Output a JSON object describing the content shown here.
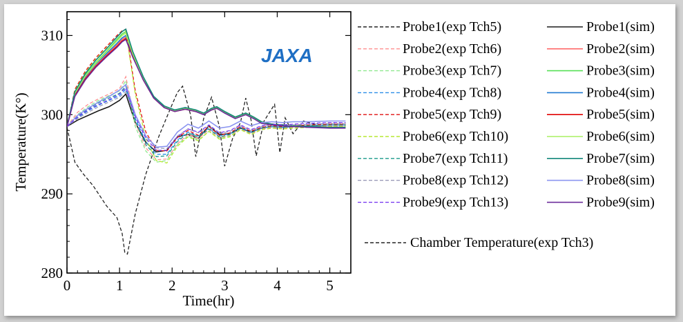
{
  "logo": {
    "text": "JAXA",
    "color": "#1f6fc4"
  },
  "chart_data": {
    "type": "line",
    "title": "",
    "xlabel": "Time(hr)",
    "ylabel": "Temperature(K°)",
    "xlim": [
      0,
      5.4
    ],
    "ylim": [
      280,
      313
    ],
    "xticks": [
      0,
      1,
      2,
      3,
      4,
      5
    ],
    "yticks": [
      280,
      290,
      300,
      310
    ],
    "grid": false,
    "legend_position": "right",
    "series": [
      {
        "name": "Probe1(exp Tch5)",
        "style": "dashed",
        "color": "#222222",
        "x": [
          0,
          0.15,
          0.3,
          0.5,
          0.75,
          0.95,
          1.05,
          1.1,
          1.15,
          1.3,
          1.5,
          1.75,
          1.95,
          2.1,
          2.2,
          2.35,
          2.45,
          2.6,
          2.75,
          2.9,
          3.0,
          3.15,
          3.3,
          3.4,
          3.5,
          3.6,
          3.75,
          3.95,
          4.05,
          4.15,
          4.3,
          4.5,
          4.75,
          5.0,
          5.3
        ],
        "values": [
          298.4,
          294.0,
          292.6,
          291.0,
          288.5,
          287.0,
          285.0,
          282.6,
          282.4,
          287.5,
          292.5,
          297.3,
          300.5,
          302.8,
          303.6,
          300.0,
          294.7,
          299.5,
          302.2,
          298.5,
          293.5,
          297.0,
          299.0,
          302.1,
          299.4,
          294.8,
          299.2,
          301.3,
          295.2,
          299.6,
          297.6,
          299.2,
          298.7,
          298.5,
          298.6
        ]
      },
      {
        "name": "Probe1(sim)",
        "style": "solid",
        "color": "#1a1a1a",
        "x": [
          0,
          0.2,
          0.4,
          0.6,
          0.8,
          1.0,
          1.12,
          1.3,
          1.5,
          1.7,
          1.9,
          2.1,
          2.3,
          2.5,
          2.7,
          2.9,
          3.1,
          3.3,
          3.5,
          3.7,
          3.9,
          4.1,
          4.3,
          4.6,
          5.0,
          5.3
        ],
        "values": [
          298.5,
          299.3,
          299.9,
          300.5,
          301.0,
          301.8,
          302.6,
          299.0,
          296.5,
          295.3,
          295.5,
          297.2,
          297.5,
          297.0,
          298.6,
          297.5,
          297.6,
          298.3,
          297.8,
          298.3,
          298.5,
          298.4,
          298.5,
          298.6,
          298.7,
          298.7
        ]
      },
      {
        "name": "Probe2(exp Tch6)",
        "style": "dashed",
        "color": "#ff8f8f",
        "x": [
          0,
          0.2,
          0.4,
          0.6,
          0.8,
          1.0,
          1.12,
          1.3,
          1.5,
          1.7,
          1.9,
          2.1,
          2.3,
          2.5,
          2.7,
          2.9,
          3.1,
          3.3,
          3.5,
          3.7,
          3.9,
          4.1,
          4.3,
          4.6,
          5.0,
          5.3
        ],
        "values": [
          298.5,
          300.3,
          301.3,
          302.0,
          302.6,
          303.3,
          304.8,
          299.0,
          295.8,
          294.3,
          294.4,
          296.3,
          297.5,
          297.0,
          298.1,
          297.1,
          297.4,
          298.2,
          297.6,
          298.2,
          298.4,
          298.3,
          298.4,
          298.5,
          298.6,
          298.6
        ]
      },
      {
        "name": "Probe2(sim)",
        "style": "solid",
        "color": "#ff6b6b",
        "x": [
          0,
          0.15,
          0.35,
          0.55,
          0.75,
          0.95,
          1.05,
          1.12,
          1.25,
          1.45,
          1.65,
          1.85,
          2.05,
          2.25,
          2.45,
          2.6,
          2.75,
          2.85,
          3.0,
          3.2,
          3.4,
          3.55,
          3.7,
          3.9,
          4.1,
          4.3,
          4.6,
          5.0,
          5.3
        ],
        "values": [
          298.5,
          302.5,
          304.6,
          306.2,
          307.5,
          308.8,
          309.5,
          309.8,
          307.5,
          304.5,
          302.2,
          301.0,
          300.4,
          300.7,
          300.4,
          300.1,
          300.6,
          300.8,
          300.3,
          299.6,
          300.1,
          299.6,
          299.0,
          298.8,
          298.7,
          298.6,
          298.5,
          298.4,
          298.4
        ]
      },
      {
        "name": "Probe3(exp Tch7)",
        "style": "dashed",
        "color": "#8fe88f",
        "x": [
          0,
          0.2,
          0.4,
          0.6,
          0.8,
          1.0,
          1.12,
          1.3,
          1.5,
          1.7,
          1.9,
          2.1,
          2.3,
          2.5,
          2.7,
          2.9,
          3.1,
          3.3,
          3.5,
          3.7,
          3.9,
          4.1,
          4.3,
          4.6,
          5.0,
          5.3
        ],
        "values": [
          298.5,
          300.0,
          301.0,
          301.8,
          302.4,
          303.0,
          304.3,
          298.5,
          295.4,
          294.0,
          294.2,
          296.2,
          297.3,
          296.8,
          297.9,
          297.0,
          297.3,
          298.1,
          297.5,
          298.1,
          298.3,
          298.2,
          298.3,
          298.4,
          298.5,
          298.5
        ]
      },
      {
        "name": "Probe3(sim)",
        "style": "solid",
        "color": "#55e055",
        "x": [
          0,
          0.15,
          0.35,
          0.55,
          0.75,
          0.95,
          1.05,
          1.12,
          1.25,
          1.45,
          1.65,
          1.85,
          2.05,
          2.25,
          2.45,
          2.6,
          2.75,
          2.85,
          3.0,
          3.2,
          3.4,
          3.55,
          3.7,
          3.9,
          4.1,
          4.3,
          4.6,
          5.0,
          5.3
        ],
        "values": [
          298.5,
          302.8,
          305.0,
          306.6,
          308.0,
          309.5,
          310.2,
          310.5,
          307.8,
          304.7,
          302.3,
          301.1,
          300.5,
          300.8,
          300.5,
          300.2,
          300.7,
          300.9,
          300.4,
          299.7,
          300.2,
          299.7,
          299.1,
          298.8,
          298.7,
          298.6,
          298.5,
          298.4,
          298.4
        ]
      },
      {
        "name": "Probe4(exp Tch8)",
        "style": "dashed",
        "color": "#2a8ee8",
        "x": [
          0,
          0.2,
          0.4,
          0.6,
          0.8,
          1.0,
          1.12,
          1.3,
          1.5,
          1.7,
          1.9,
          2.1,
          2.3,
          2.5,
          2.7,
          2.9,
          3.1,
          3.3,
          3.5,
          3.7,
          3.9,
          4.1,
          4.3,
          4.6,
          5.0,
          5.3
        ],
        "values": [
          298.5,
          299.6,
          300.5,
          301.2,
          301.8,
          302.4,
          303.2,
          299.5,
          296.6,
          295.0,
          295.0,
          296.8,
          297.8,
          297.3,
          298.3,
          297.3,
          297.6,
          298.4,
          297.8,
          298.3,
          298.5,
          298.4,
          298.5,
          298.6,
          298.7,
          298.7
        ]
      },
      {
        "name": "Probe4(sim)",
        "style": "solid",
        "color": "#1f78d1",
        "x": [
          0,
          0.15,
          0.35,
          0.55,
          0.75,
          0.95,
          1.05,
          1.12,
          1.25,
          1.45,
          1.65,
          1.85,
          2.05,
          2.25,
          2.45,
          2.6,
          2.75,
          2.85,
          3.0,
          3.2,
          3.4,
          3.55,
          3.7,
          3.9,
          4.1,
          4.3,
          4.6,
          5.0,
          5.3
        ],
        "values": [
          298.5,
          302.6,
          304.8,
          306.4,
          307.7,
          309.0,
          309.7,
          310.0,
          307.6,
          304.6,
          302.2,
          301.0,
          300.5,
          300.8,
          300.5,
          300.1,
          300.7,
          300.9,
          300.3,
          299.6,
          300.1,
          299.6,
          299.0,
          298.8,
          298.7,
          298.6,
          298.5,
          298.4,
          298.4
        ]
      },
      {
        "name": "Probe5(exp Tch9)",
        "style": "dashed",
        "color": "#e01010",
        "x": [
          0,
          0.15,
          0.35,
          0.55,
          0.75,
          0.95,
          1.05,
          1.12,
          1.3,
          1.5,
          1.7,
          1.9,
          2.1,
          2.3,
          2.5,
          2.7,
          2.9,
          3.1,
          3.3,
          3.5,
          3.7,
          3.9,
          4.1,
          4.3,
          4.6,
          5.0,
          5.3
        ],
        "values": [
          298.5,
          303.2,
          305.5,
          307.2,
          308.6,
          310.0,
          310.6,
          310.8,
          303.0,
          297.8,
          295.5,
          295.4,
          297.1,
          298.0,
          297.4,
          298.5,
          297.4,
          297.7,
          298.5,
          297.9,
          298.4,
          298.6,
          298.5,
          298.6,
          298.7,
          298.8,
          298.8
        ]
      },
      {
        "name": "Probe5(sim)",
        "style": "solid",
        "color": "#e00000",
        "x": [
          0,
          0.15,
          0.35,
          0.55,
          0.75,
          0.95,
          1.05,
          1.12,
          1.25,
          1.45,
          1.65,
          1.85,
          2.05,
          2.25,
          2.45,
          2.6,
          2.75,
          2.85,
          3.0,
          3.2,
          3.4,
          3.55,
          3.7,
          3.9,
          4.1,
          4.3,
          4.6,
          5.0,
          5.3
        ],
        "values": [
          298.5,
          302.4,
          304.5,
          306.1,
          307.4,
          308.6,
          309.3,
          309.6,
          307.4,
          304.4,
          302.1,
          300.9,
          300.4,
          300.7,
          300.4,
          300.1,
          300.6,
          300.8,
          300.3,
          299.6,
          300.1,
          299.6,
          299.0,
          298.8,
          298.7,
          298.6,
          298.5,
          298.4,
          298.4
        ]
      },
      {
        "name": "Probe6(exp Tch10)",
        "style": "dashed",
        "color": "#b5e830",
        "x": [
          0,
          0.15,
          0.35,
          0.55,
          0.75,
          0.95,
          1.05,
          1.12,
          1.3,
          1.5,
          1.7,
          1.9,
          2.1,
          2.3,
          2.5,
          2.7,
          2.9,
          3.1,
          3.3,
          3.5,
          3.7,
          3.9,
          4.1,
          4.3,
          4.6,
          5.0,
          5.3
        ],
        "values": [
          298.5,
          303.0,
          305.3,
          307.0,
          308.4,
          309.8,
          310.5,
          310.6,
          302.6,
          297.0,
          294.2,
          293.9,
          296.0,
          297.2,
          296.7,
          297.9,
          296.9,
          297.2,
          298.1,
          297.5,
          298.1,
          298.3,
          298.2,
          298.3,
          298.4,
          298.5,
          298.5
        ]
      },
      {
        "name": "Probe6(sim)",
        "style": "solid",
        "color": "#a8f060",
        "x": [
          0,
          0.15,
          0.35,
          0.55,
          0.75,
          0.95,
          1.05,
          1.12,
          1.25,
          1.45,
          1.65,
          1.85,
          2.05,
          2.25,
          2.45,
          2.6,
          2.75,
          2.85,
          3.0,
          3.2,
          3.4,
          3.55,
          3.7,
          3.9,
          4.1,
          4.3,
          4.6,
          5.0,
          5.3
        ],
        "values": [
          298.5,
          302.7,
          304.9,
          306.5,
          307.9,
          309.3,
          310.0,
          310.3,
          307.7,
          304.6,
          302.2,
          301.0,
          300.5,
          300.8,
          300.5,
          300.1,
          300.7,
          300.9,
          300.3,
          299.6,
          300.1,
          299.6,
          299.0,
          298.8,
          298.7,
          298.6,
          298.5,
          298.4,
          298.4
        ]
      },
      {
        "name": "Probe7(exp Tch11)",
        "style": "dashed",
        "color": "#1a9a8a",
        "x": [
          0,
          0.2,
          0.4,
          0.6,
          0.8,
          1.0,
          1.12,
          1.3,
          1.5,
          1.7,
          1.9,
          2.1,
          2.3,
          2.5,
          2.7,
          2.9,
          3.1,
          3.3,
          3.5,
          3.7,
          3.9,
          4.1,
          4.3,
          4.6,
          5.0,
          5.3
        ],
        "values": [
          298.5,
          299.8,
          300.7,
          301.5,
          302.1,
          302.7,
          303.6,
          299.2,
          296.2,
          294.7,
          294.8,
          296.6,
          297.7,
          297.2,
          298.2,
          297.2,
          297.5,
          298.3,
          297.7,
          298.3,
          298.5,
          298.4,
          298.5,
          298.6,
          298.7,
          298.7
        ]
      },
      {
        "name": "Probe7(sim)",
        "style": "solid",
        "color": "#12877a",
        "x": [
          0,
          0.15,
          0.35,
          0.55,
          0.75,
          0.95,
          1.05,
          1.12,
          1.25,
          1.45,
          1.65,
          1.85,
          2.05,
          2.25,
          2.45,
          2.6,
          2.75,
          2.85,
          3.0,
          3.2,
          3.4,
          3.55,
          3.7,
          3.9,
          4.1,
          4.3,
          4.6,
          5.0,
          5.3
        ],
        "values": [
          298.5,
          302.9,
          305.2,
          306.9,
          308.3,
          309.8,
          310.5,
          310.8,
          308.0,
          304.8,
          302.3,
          301.1,
          300.6,
          300.9,
          300.6,
          300.2,
          300.8,
          301.0,
          300.4,
          299.7,
          300.2,
          299.7,
          299.1,
          298.8,
          298.7,
          298.6,
          298.5,
          298.4,
          298.4
        ]
      },
      {
        "name": "Probe8(exp Tch12)",
        "style": "dashed",
        "color": "#9a9ab8",
        "x": [
          0,
          0.2,
          0.4,
          0.6,
          0.8,
          1.0,
          1.12,
          1.3,
          1.5,
          1.7,
          1.9,
          2.1,
          2.3,
          2.5,
          2.7,
          2.9,
          3.1,
          3.3,
          3.5,
          3.7,
          3.9,
          4.1,
          4.3,
          4.6,
          5.0,
          5.3
        ],
        "values": [
          298.5,
          299.5,
          300.3,
          301.0,
          301.6,
          302.2,
          302.9,
          299.8,
          297.2,
          295.8,
          295.7,
          297.3,
          298.2,
          297.7,
          298.6,
          297.6,
          297.9,
          298.6,
          298.0,
          298.5,
          298.7,
          298.6,
          298.7,
          298.8,
          298.9,
          298.9
        ]
      },
      {
        "name": "Probe8(sim)",
        "style": "solid",
        "color": "#8a94f0",
        "x": [
          0,
          0.2,
          0.4,
          0.6,
          0.8,
          1.0,
          1.12,
          1.3,
          1.5,
          1.7,
          1.9,
          2.1,
          2.3,
          2.5,
          2.7,
          2.9,
          3.1,
          3.3,
          3.5,
          3.7,
          3.9,
          4.1,
          4.3,
          4.6,
          5.0,
          5.3
        ],
        "values": [
          298.5,
          299.9,
          300.8,
          301.6,
          302.3,
          303.1,
          303.8,
          300.0,
          297.3,
          295.9,
          296.0,
          297.8,
          298.8,
          298.3,
          299.2,
          298.3,
          298.5,
          299.2,
          298.6,
          299.0,
          299.1,
          299.0,
          299.1,
          299.1,
          299.2,
          299.2
        ]
      },
      {
        "name": "Probe9(exp Tch13)",
        "style": "dashed",
        "color": "#7a3cf0",
        "x": [
          0,
          0.2,
          0.4,
          0.6,
          0.8,
          1.0,
          1.12,
          1.3,
          1.5,
          1.7,
          1.9,
          2.1,
          2.3,
          2.5,
          2.7,
          2.9,
          3.1,
          3.3,
          3.5,
          3.7,
          3.9,
          4.1,
          4.3,
          4.6,
          5.0,
          5.3
        ],
        "values": [
          298.5,
          299.7,
          300.6,
          301.3,
          301.9,
          302.6,
          303.4,
          299.7,
          297.0,
          295.5,
          295.5,
          297.2,
          298.2,
          297.8,
          298.7,
          297.7,
          298.0,
          298.7,
          298.1,
          298.6,
          298.8,
          298.7,
          298.8,
          298.9,
          299.0,
          299.0
        ]
      },
      {
        "name": "Probe9(sim)",
        "style": "solid",
        "color": "#6a2a9a",
        "x": [
          0,
          0.15,
          0.35,
          0.55,
          0.75,
          0.95,
          1.05,
          1.12,
          1.25,
          1.45,
          1.65,
          1.85,
          2.05,
          2.25,
          2.45,
          2.6,
          2.75,
          2.85,
          3.0,
          3.2,
          3.4,
          3.55,
          3.7,
          3.9,
          4.1,
          4.3,
          4.6,
          5.0,
          5.3
        ],
        "values": [
          298.5,
          302.3,
          304.4,
          306.0,
          307.3,
          308.5,
          309.2,
          309.5,
          307.3,
          304.4,
          302.1,
          300.9,
          300.4,
          300.7,
          300.4,
          300.0,
          300.6,
          300.8,
          300.2,
          299.5,
          300.0,
          299.5,
          298.9,
          298.7,
          298.6,
          298.5,
          298.4,
          298.3,
          298.3
        ]
      },
      {
        "name": "Chamber Temperature(exp Tch3)",
        "style": "dashed",
        "color": "#222222",
        "x": [],
        "values": []
      }
    ]
  }
}
